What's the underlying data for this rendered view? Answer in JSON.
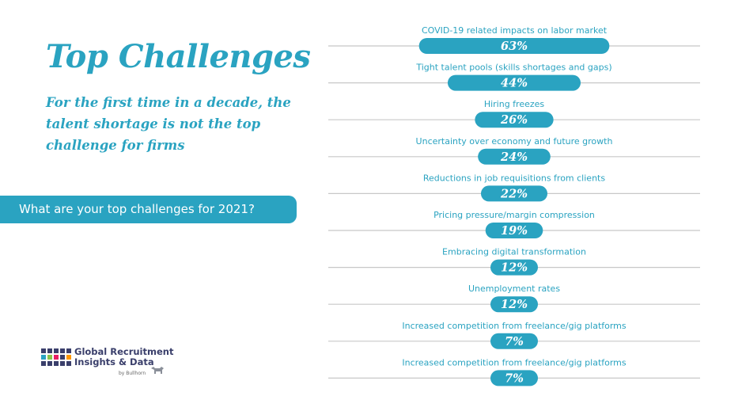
{
  "heading": {
    "title": "Top Challenges",
    "subtitle": "For the first time in a decade, the talent shortage is not the top challenge for firms"
  },
  "question": "What are your top challenges for 2021?",
  "logo": {
    "name_line1": "Global Recruitment",
    "name_line2": "Insights & Data",
    "by": "by Bullhorn",
    "grid_colors": [
      "#3a3f6b",
      "#3a3f6b",
      "#3a3f6b",
      "#3a3f6b",
      "#3a3f6b",
      "#2aa3c1",
      "#8bc34a",
      "#e91e63",
      "#3a3f6b",
      "#ff9800",
      "#3a3f6b",
      "#3a3f6b",
      "#3a3f6b",
      "#3a3f6b",
      "#3a3f6b"
    ]
  },
  "colors": {
    "accent": "#2aa3c1",
    "rule": "#c8c8c8"
  },
  "chart_data": {
    "type": "bar",
    "orientation": "horizontal-centered",
    "categories": [
      "COVID-19 related impacts on labor market",
      "Tight talent pools (skills shortages and gaps)",
      "Hiring freezes",
      "Uncertainty over economy and future growth",
      "Reductions in job requisitions from clients",
      "Pricing pressure/margin compression",
      "Embracing digital transformation",
      "Unemployment rates",
      "Increased competition from freelance/gig platforms",
      "Increased competition from freelance/gig platforms"
    ],
    "values": [
      63,
      44,
      26,
      24,
      22,
      19,
      12,
      12,
      7,
      7
    ],
    "value_labels": [
      "63%",
      "44%",
      "26%",
      "24%",
      "22%",
      "19%",
      "12%",
      "12%",
      "7%",
      "7%"
    ],
    "unit": "%",
    "grid": false,
    "legend": "none"
  }
}
